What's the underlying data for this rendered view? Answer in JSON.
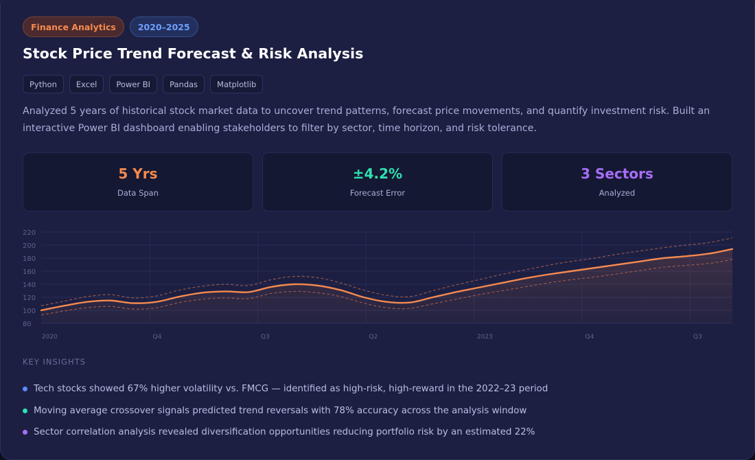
{
  "tags": [
    {
      "label": "Finance Analytics",
      "color": "#f58a4f"
    },
    {
      "label": "2020–2025",
      "color": "#6ea1ff"
    }
  ],
  "title": "Stock Price Trend Forecast & Risk Analysis",
  "tools": [
    "Python",
    "Excel",
    "Power BI",
    "Pandas",
    "Matplotlib"
  ],
  "description": "Analyzed 5 years of historical stock market data to uncover trend patterns, forecast price movements, and quantify investment risk. Built an interactive Power BI dashboard enabling stakeholders to filter by sector, time horizon, and risk tolerance.",
  "stats": [
    {
      "value": "5 Yrs",
      "label": "Data Span",
      "color": "#f58a4f"
    },
    {
      "value": "±4.2%",
      "label": "Forecast Error",
      "color": "#2fe0b0"
    },
    {
      "value": "3 Sectors",
      "label": "Analyzed",
      "color": "#a86ef7"
    }
  ],
  "chart_data": {
    "type": "line",
    "x_labels": [
      "2020",
      "Q4",
      "Q3",
      "Q2",
      "2023",
      "Q4",
      "Q3"
    ],
    "y_ticks": [
      80,
      100,
      120,
      140,
      160,
      180,
      200,
      220
    ],
    "ylim": [
      80,
      220
    ],
    "grid": true,
    "legend": "none",
    "series": [
      {
        "role": "forecast",
        "color": "#f58a4f",
        "values": [
          100,
          107,
          113,
          115,
          111,
          113,
          121,
          127,
          129,
          128,
          136,
          140,
          138,
          131,
          120,
          113,
          112,
          120,
          128,
          135,
          142,
          149,
          155,
          160,
          165,
          170,
          175,
          180,
          183,
          187,
          194
        ]
      },
      {
        "role": "upper-band",
        "color": "#b06450",
        "values": [
          107,
          114,
          121,
          124,
          119,
          122,
          131,
          137,
          140,
          138,
          147,
          152,
          150,
          142,
          131,
          123,
          121,
          130,
          139,
          147,
          155,
          162,
          169,
          175,
          180,
          186,
          191,
          196,
          200,
          204,
          211
        ]
      },
      {
        "role": "lower-band",
        "color": "#b06450",
        "values": [
          93,
          99,
          104,
          106,
          102,
          104,
          112,
          117,
          119,
          118,
          126,
          129,
          127,
          121,
          111,
          104,
          103,
          110,
          117,
          124,
          130,
          136,
          142,
          147,
          151,
          156,
          161,
          166,
          169,
          172,
          178
        ]
      }
    ]
  },
  "insights_heading": "KEY INSIGHTS",
  "insights": [
    {
      "text": "Tech stocks showed 67% higher volatility vs. FMCG — identified as high-risk, high-reward in the 2022–23 period",
      "color": "#5b8cff"
    },
    {
      "text": "Moving average crossover signals predicted trend reversals with 78% accuracy across the analysis window",
      "color": "#2fe0b0"
    },
    {
      "text": "Sector correlation analysis revealed diversification opportunities reducing portfolio risk by an estimated 22%",
      "color": "#a86ef7"
    }
  ]
}
